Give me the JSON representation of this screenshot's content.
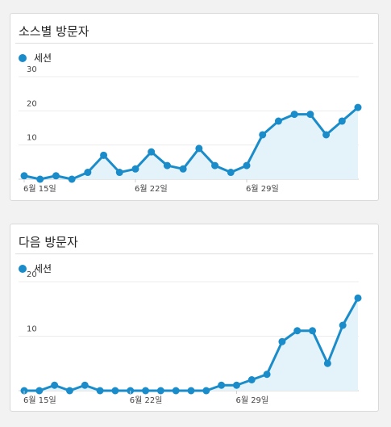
{
  "colors": {
    "line": "#1a8cc9",
    "area": "#e4f2fa",
    "grid": "#ececec",
    "axis": "#444444"
  },
  "cards": [
    {
      "title": "소스별 방문자",
      "legend_label": "세션",
      "chart_data": {
        "type": "area",
        "series": [
          {
            "name": "세션",
            "values": [
              1,
              0,
              1,
              0,
              2,
              7,
              2,
              3,
              8,
              4,
              3,
              9,
              4,
              2,
              4,
              13,
              17,
              19,
              19,
              13,
              17,
              21
            ]
          }
        ],
        "x_tick_labels": [
          {
            "label": "6월 15일",
            "index": 0
          },
          {
            "label": "6월 22일",
            "index": 7
          },
          {
            "label": "6월 29일",
            "index": 14
          }
        ],
        "y_ticks": [
          10,
          20,
          30
        ],
        "ylim": [
          0,
          30
        ]
      }
    },
    {
      "title": "다음 방문자",
      "legend_label": "세션",
      "chart_data": {
        "type": "area",
        "series": [
          {
            "name": "세션",
            "values": [
              0,
              0,
              1,
              0,
              1,
              0,
              0,
              0,
              0,
              0,
              0,
              0,
              0,
              1,
              1,
              2,
              3,
              9,
              11,
              11,
              5,
              12,
              17
            ]
          }
        ],
        "x_tick_labels": [
          {
            "label": "6월 15일",
            "index": 0
          },
          {
            "label": "6월 22일",
            "index": 7
          },
          {
            "label": "6월 29일",
            "index": 14
          }
        ],
        "y_ticks": [
          10,
          20
        ],
        "ylim": [
          0,
          20
        ]
      }
    }
  ]
}
